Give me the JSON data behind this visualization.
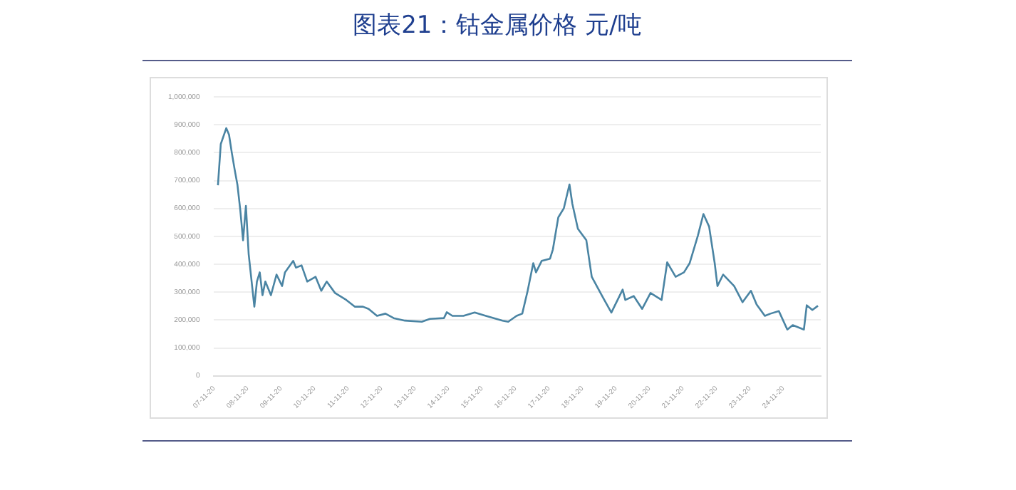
{
  "chart_data": {
    "type": "line",
    "title": "图表21：钴金属价格 元/吨",
    "x": [
      "2008-01",
      "2008-02",
      "2008-04",
      "2008-05",
      "2008-06",
      "2008-07",
      "2008-08",
      "2008-09",
      "2008-10",
      "2008-11",
      "2008-12",
      "2009-02",
      "2009-03",
      "2009-04",
      "2009-05",
      "2009-06",
      "2009-08",
      "2009-10",
      "2009-12",
      "2010-01",
      "2010-04",
      "2010-05",
      "2010-07",
      "2010-09",
      "2010-12",
      "2011-02",
      "2011-04",
      "2011-07",
      "2011-11",
      "2012-02",
      "2012-05",
      "2012-07",
      "2012-10",
      "2013-01",
      "2013-04",
      "2013-08",
      "2014-02",
      "2014-05",
      "2014-10",
      "2014-11",
      "2015-01",
      "2015-05",
      "2015-09",
      "2016-01",
      "2016-07",
      "2016-09",
      "2016-12",
      "2017-02",
      "2017-04",
      "2017-06",
      "2017-07",
      "2017-09",
      "2017-12",
      "2018-01",
      "2018-03",
      "2018-05",
      "2018-07",
      "2018-08",
      "2018-10",
      "2019-01",
      "2019-03",
      "2019-07",
      "2019-10",
      "2020-02",
      "2020-03",
      "2020-06",
      "2020-09",
      "2020-12",
      "2021-04",
      "2021-06",
      "2021-09",
      "2021-12",
      "2022-02",
      "2022-05",
      "2022-07",
      "2022-09",
      "2022-11",
      "2022-12",
      "2023-02",
      "2023-06",
      "2023-09",
      "2023-12",
      "2024-02",
      "2024-05",
      "2024-07",
      "2024-10",
      "2025-01",
      "2025-03",
      "2025-07",
      "2025-08",
      "2025-10",
      "2025-12"
    ],
    "series": [
      {
        "color": "#4a84a3",
        "values": [
          683000,
          831000,
          888000,
          864000,
          798000,
          740000,
          684000,
          593000,
          486000,
          609000,
          437000,
          248000,
          338000,
          371000,
          289000,
          338000,
          289000,
          363000,
          322000,
          371000,
          412000,
          388000,
          396000,
          338000,
          355000,
          305000,
          338000,
          297000,
          272000,
          248000,
          248000,
          240000,
          215000,
          223000,
          207000,
          198000,
          194000,
          204000,
          207000,
          228000,
          215000,
          215000,
          227000,
          215000,
          198000,
          194000,
          215000,
          223000,
          305000,
          404000,
          371000,
          412000,
          420000,
          453000,
          568000,
          601000,
          686000,
          617000,
          527000,
          486000,
          355000,
          281000,
          227000,
          309000,
          272000,
          286000,
          240000,
          297000,
          272000,
          407000,
          355000,
          371000,
          404000,
          502000,
          580000,
          535000,
          404000,
          322000,
          363000,
          322000,
          264000,
          305000,
          256000,
          215000,
          223000,
          232000,
          166000,
          182000,
          166000,
          253000,
          236000,
          251000
        ]
      }
    ],
    "xlim": [
      "2007-11-20",
      "2026-01-01"
    ],
    "xticks": [
      {
        "value": "2007-11-20",
        "label": "07-11-20"
      },
      {
        "value": "2008-11-20",
        "label": "08-11-20"
      },
      {
        "value": "2009-11-20",
        "label": "09-11-20"
      },
      {
        "value": "2010-11-20",
        "label": "10-11-20"
      },
      {
        "value": "2011-11-20",
        "label": "11-11-20"
      },
      {
        "value": "2012-11-20",
        "label": "12-11-20"
      },
      {
        "value": "2013-11-20",
        "label": "13-11-20"
      },
      {
        "value": "2014-11-20",
        "label": "14-11-20"
      },
      {
        "value": "2015-11-20",
        "label": "15-11-20"
      },
      {
        "value": "2016-11-20",
        "label": "16-11-20"
      },
      {
        "value": "2017-11-20",
        "label": "17-11-20"
      },
      {
        "value": "2018-11-20",
        "label": "18-11-20"
      },
      {
        "value": "2019-11-20",
        "label": "19-11-20"
      },
      {
        "value": "2020-11-20",
        "label": "20-11-20"
      },
      {
        "value": "2021-11-20",
        "label": "21-11-20"
      },
      {
        "value": "2022-11-20",
        "label": "22-11-20"
      },
      {
        "value": "2023-11-20",
        "label": "23-11-20"
      },
      {
        "value": "2024-11-20",
        "label": "24-11-20"
      }
    ],
    "ylim": [
      0,
      1000000
    ],
    "yticks": [
      0,
      {
        "value": 100000,
        "label": "100,000"
      },
      {
        "value": 200000,
        "label": "200,000"
      },
      {
        "value": 300000,
        "label": "300,000"
      },
      {
        "value": 400000,
        "label": "400,000"
      },
      {
        "value": 500000,
        "label": "500,000"
      },
      {
        "value": 600000,
        "label": "600,000"
      },
      {
        "value": 700000,
        "label": "700,000"
      },
      {
        "value": 800000,
        "label": "800,000"
      },
      {
        "value": 900000,
        "label": "900,000"
      },
      {
        "value": 1000000,
        "label": "1,000,000"
      }
    ],
    "grid": "y",
    "legend": false,
    "marker": "none",
    "line_style": "solid"
  }
}
